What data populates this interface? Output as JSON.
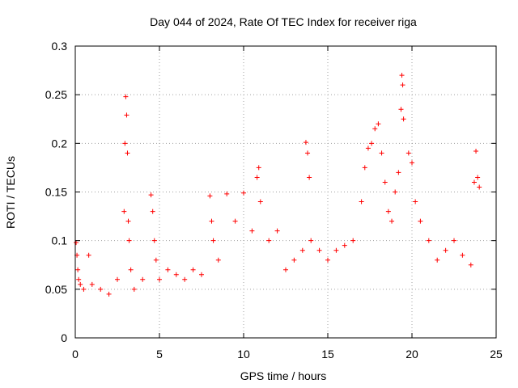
{
  "chart_data": {
    "type": "scatter",
    "title": "Day 044 of 2024, Rate Of TEC Index for receiver riga",
    "xlabel": "GPS time / hours",
    "ylabel": "ROTI / TECUs",
    "xlim": [
      0,
      25
    ],
    "ylim": [
      0,
      0.3
    ],
    "xticks": [
      0,
      5,
      10,
      15,
      20,
      25
    ],
    "yticks": [
      0,
      0.05,
      0.1,
      0.15,
      0.2,
      0.25,
      0.3
    ],
    "xtick_labels": [
      "0",
      "5",
      "10",
      "15",
      "20",
      "25"
    ],
    "ytick_labels": [
      "0",
      "0.05",
      "0.1",
      "0.15",
      "0.2",
      "0.25",
      "0.3"
    ],
    "grid": true,
    "marker": "+",
    "series_color": "#ff0000",
    "series": [
      {
        "name": "ROTI",
        "x": [
          0.05,
          0.1,
          0.15,
          0.2,
          0.3,
          0.5,
          0.8,
          1.0,
          1.5,
          2.0,
          2.5,
          2.9,
          2.95,
          3.0,
          3.05,
          3.1,
          3.15,
          3.2,
          3.3,
          3.5,
          4.0,
          4.5,
          4.6,
          4.7,
          4.8,
          5.0,
          5.5,
          6.0,
          6.5,
          7.0,
          7.5,
          8.0,
          8.1,
          8.2,
          8.5,
          9.0,
          9.5,
          10.0,
          10.5,
          10.8,
          10.9,
          11.0,
          11.5,
          12.0,
          12.5,
          13.0,
          13.5,
          13.7,
          13.8,
          13.9,
          14.0,
          14.5,
          15.0,
          15.5,
          16.0,
          16.5,
          17.0,
          17.2,
          17.4,
          17.6,
          17.8,
          18.0,
          18.2,
          18.4,
          18.6,
          18.8,
          19.0,
          19.2,
          19.35,
          19.4,
          19.45,
          19.5,
          19.8,
          20.0,
          20.2,
          20.5,
          21.0,
          21.5,
          22.0,
          22.5,
          23.0,
          23.5,
          23.7,
          23.8,
          23.9,
          24.0
        ],
        "y": [
          0.098,
          0.085,
          0.07,
          0.06,
          0.055,
          0.05,
          0.085,
          0.055,
          0.05,
          0.045,
          0.06,
          0.13,
          0.2,
          0.248,
          0.229,
          0.19,
          0.12,
          0.1,
          0.07,
          0.05,
          0.06,
          0.147,
          0.13,
          0.1,
          0.08,
          0.06,
          0.07,
          0.065,
          0.06,
          0.07,
          0.065,
          0.146,
          0.12,
          0.1,
          0.08,
          0.148,
          0.12,
          0.149,
          0.11,
          0.165,
          0.175,
          0.14,
          0.1,
          0.11,
          0.07,
          0.08,
          0.09,
          0.201,
          0.19,
          0.165,
          0.1,
          0.09,
          0.08,
          0.09,
          0.095,
          0.1,
          0.14,
          0.175,
          0.195,
          0.2,
          0.215,
          0.22,
          0.19,
          0.16,
          0.13,
          0.12,
          0.15,
          0.17,
          0.235,
          0.27,
          0.26,
          0.225,
          0.19,
          0.18,
          0.14,
          0.12,
          0.1,
          0.08,
          0.09,
          0.1,
          0.085,
          0.075,
          0.16,
          0.192,
          0.165,
          0.155
        ]
      }
    ]
  }
}
